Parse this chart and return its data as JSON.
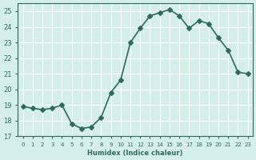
{
  "x": [
    0,
    1,
    2,
    3,
    4,
    5,
    6,
    7,
    8,
    9,
    10,
    11,
    12,
    13,
    14,
    15,
    16,
    17,
    18,
    19,
    20,
    21,
    22,
    23
  ],
  "y": [
    18.9,
    18.8,
    18.7,
    18.8,
    19.0,
    17.8,
    17.5,
    17.6,
    18.2,
    19.8,
    20.6,
    23.0,
    23.9,
    24.7,
    24.9,
    25.1,
    24.7,
    23.9,
    24.4,
    24.2,
    23.3,
    22.5,
    21.1,
    21.0
  ],
  "line_color": "#2e6b5e",
  "bg_color": "#d4eeea",
  "grid_color": "#ffffff",
  "xlabel": "Humidex (Indice chaleur)",
  "ylim": [
    17,
    25.5
  ],
  "xlim": [
    -0.5,
    23.5
  ],
  "yticks": [
    17,
    18,
    19,
    20,
    21,
    22,
    23,
    24,
    25
  ],
  "xtick_labels": [
    "0",
    "1",
    "2",
    "3",
    "4",
    "5",
    "6",
    "7",
    "8",
    "9",
    "10",
    "11",
    "12",
    "13",
    "14",
    "15",
    "16",
    "17",
    "18",
    "19",
    "20",
    "21",
    "22",
    "23"
  ],
  "marker": "D",
  "markersize": 3,
  "linewidth": 1.2
}
